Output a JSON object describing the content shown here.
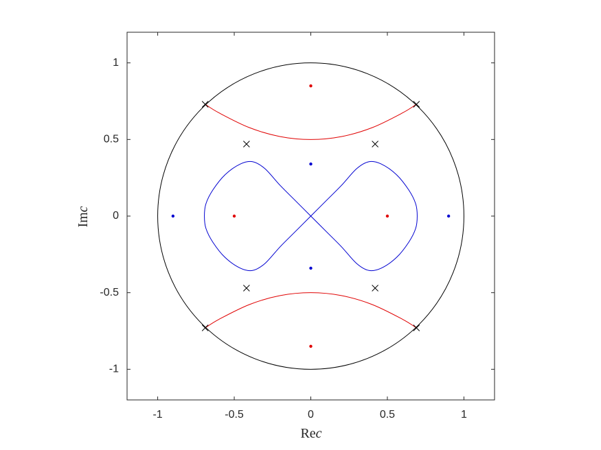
{
  "chart_data": {
    "type": "line",
    "xlabel": [
      "Re",
      "c"
    ],
    "ylabel": [
      "Im",
      "c"
    ],
    "xlim": [
      -1.2,
      1.2
    ],
    "ylim": [
      -1.2,
      1.2
    ],
    "xticks": [
      -1,
      -0.5,
      0,
      0.5,
      1
    ],
    "yticks": [
      -1,
      -0.5,
      0,
      0.5,
      1
    ],
    "circle": {
      "center": [
        0,
        0
      ],
      "radius": 1,
      "color": "#000000"
    },
    "curves": [
      {
        "color": "#e00000",
        "x": [
          -0.69,
          -0.6,
          -0.4,
          -0.2,
          0,
          0.2,
          0.4,
          0.6,
          0.69
        ],
        "y": [
          0.73,
          0.674,
          0.577,
          0.519,
          0.5,
          0.519,
          0.577,
          0.674,
          0.73
        ]
      },
      {
        "color": "#e00000",
        "x": [
          -0.69,
          -0.6,
          -0.4,
          -0.2,
          0,
          0.2,
          0.4,
          0.6,
          0.69
        ],
        "y": [
          -0.73,
          -0.674,
          -0.577,
          -0.519,
          -0.5,
          -0.519,
          -0.577,
          -0.674,
          -0.73
        ]
      },
      {
        "color": "#0000d0",
        "x": [
          0,
          0.1,
          0.2,
          0.3,
          0.38,
          0.46,
          0.56,
          0.64,
          0.685,
          0.695,
          0.685,
          0.64,
          0.56,
          0.46,
          0.38,
          0.3,
          0.2,
          0.1,
          0,
          -0.1,
          -0.2,
          -0.3,
          -0.38,
          -0.46,
          -0.56,
          -0.64,
          -0.685,
          -0.695,
          -0.685,
          -0.64,
          -0.56,
          -0.46,
          -0.38,
          -0.3,
          -0.2,
          -0.1,
          0
        ],
        "y": [
          0,
          0.1,
          0.2,
          0.31,
          0.355,
          0.34,
          0.27,
          0.17,
          0.08,
          0,
          -0.08,
          -0.17,
          -0.27,
          -0.34,
          -0.355,
          -0.31,
          -0.2,
          -0.1,
          0,
          0.1,
          0.2,
          0.31,
          0.355,
          0.34,
          0.27,
          0.17,
          0.08,
          0,
          -0.08,
          -0.17,
          -0.27,
          -0.34,
          -0.355,
          -0.31,
          -0.2,
          -0.1,
          0
        ]
      }
    ],
    "points": [
      {
        "color": "#e00000",
        "marker": "dot",
        "x": [
          0,
          0,
          -0.5,
          0.5
        ],
        "y": [
          0.85,
          -0.85,
          0,
          0
        ]
      },
      {
        "color": "#0000d0",
        "marker": "dot",
        "x": [
          0,
          0,
          -0.9,
          0.9
        ],
        "y": [
          0.34,
          -0.34,
          0,
          0
        ]
      },
      {
        "color": "#000000",
        "marker": "x",
        "x": [
          -0.69,
          0.69,
          -0.69,
          0.69,
          -0.42,
          0.42,
          -0.42,
          0.42
        ],
        "y": [
          0.73,
          0.73,
          -0.73,
          -0.73,
          0.47,
          0.47,
          -0.47,
          -0.47
        ]
      }
    ]
  }
}
